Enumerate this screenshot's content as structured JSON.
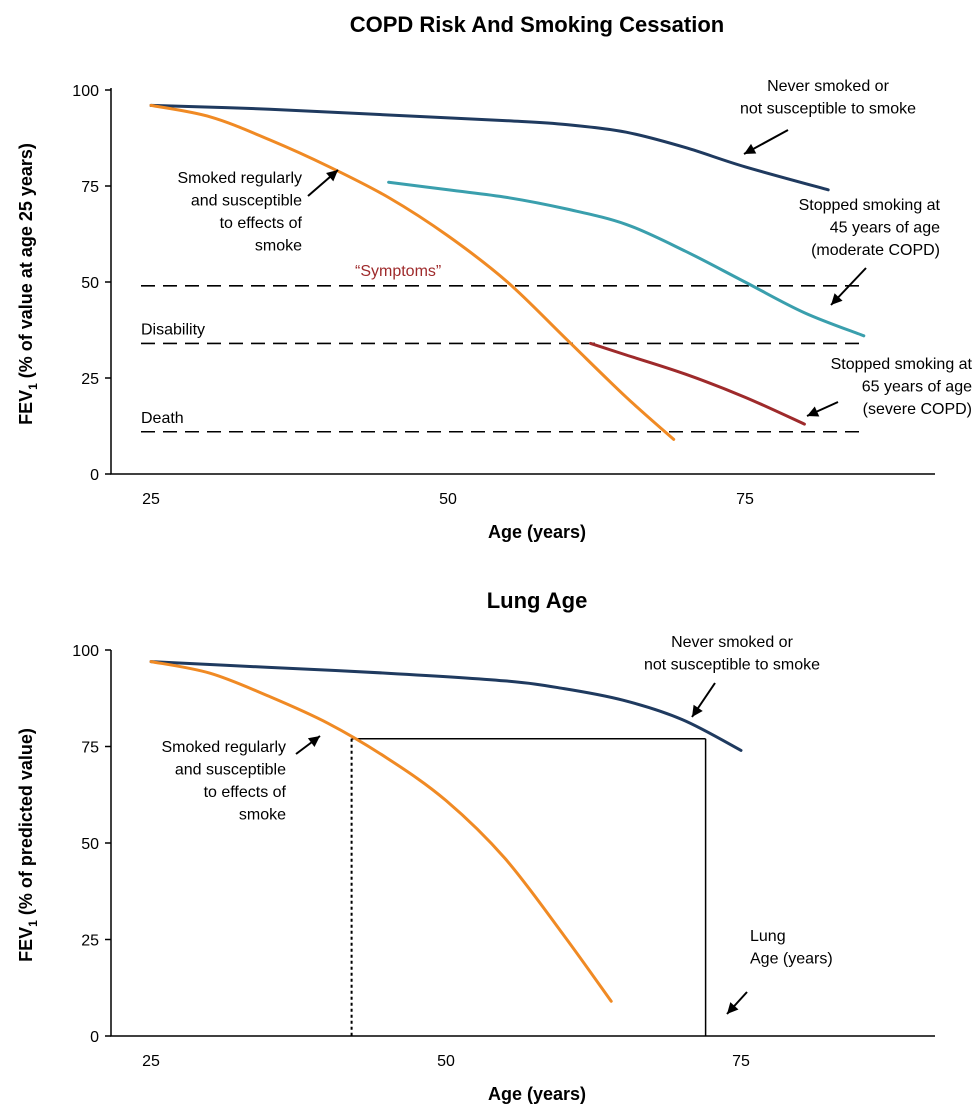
{
  "chart_data": [
    {
      "type": "line",
      "title": "COPD Risk And Smoking Cessation",
      "xlabel": "Age (years)",
      "ylabel": "FEV",
      "ylabel_sub": "1",
      "ylabel_rest": " (% of value at age 25 years)",
      "xlim": [
        21,
        95
      ],
      "ylim": [
        0,
        100
      ],
      "x_ticks": [
        25,
        50,
        75
      ],
      "y_ticks": [
        0,
        25,
        50,
        75,
        100
      ],
      "grid": false,
      "colors": {
        "never": "#1f3a5f",
        "smoked": "#f08a24",
        "stop45": "#3a9fad",
        "stop65": "#9e2a2b"
      },
      "series": [
        {
          "key": "never",
          "x": [
            25,
            35,
            45,
            55,
            60,
            65,
            70,
            75,
            82
          ],
          "y": [
            96,
            95,
            93.5,
            92,
            91,
            89,
            85,
            80,
            74
          ]
        },
        {
          "key": "smoked",
          "x": [
            25,
            30,
            35,
            40,
            45,
            50,
            55,
            60,
            65,
            69
          ],
          "y": [
            96,
            93,
            87,
            80,
            72,
            62,
            50,
            35,
            20,
            9
          ]
        },
        {
          "key": "stop45",
          "x": [
            45,
            50,
            55,
            60,
            65,
            70,
            75,
            80,
            85
          ],
          "y": [
            76,
            74,
            72,
            69,
            65,
            58,
            50,
            42,
            36
          ]
        },
        {
          "key": "stop65",
          "x": [
            62,
            65,
            70,
            75,
            80
          ],
          "y": [
            34,
            31,
            26,
            20,
            13
          ]
        }
      ],
      "reference_lines": [
        {
          "y": 49,
          "label": "“Symptoms”"
        },
        {
          "y": 34,
          "label": "Disability"
        },
        {
          "y": 11,
          "label": "Death"
        }
      ],
      "annotations": [
        {
          "lines": [
            "Never smoked or",
            "not susceptible to smoke"
          ]
        },
        {
          "lines": [
            "Smoked regularly",
            "and susceptible",
            "to effects of",
            "smoke"
          ]
        },
        {
          "lines": [
            "Stopped smoking at",
            "45 years of age",
            "(moderate COPD)"
          ]
        },
        {
          "lines": [
            "Stopped smoking at",
            "65 years of age",
            "(severe COPD)"
          ]
        }
      ]
    },
    {
      "type": "line",
      "title": "Lung Age",
      "xlabel": "Age (years)",
      "ylabel": "FEV",
      "ylabel_sub": "1",
      "ylabel_rest": " (% of predicted value)",
      "xlim": [
        21,
        95
      ],
      "ylim": [
        0,
        100
      ],
      "x_ticks": [
        25,
        50,
        75
      ],
      "y_ticks": [
        0,
        25,
        50,
        75,
        100
      ],
      "grid": false,
      "colors": {
        "never": "#1f3a5f",
        "smoked": "#f08a24"
      },
      "series": [
        {
          "key": "never",
          "x": [
            25,
            35,
            45,
            55,
            60,
            65,
            70,
            75
          ],
          "y": [
            97,
            95.5,
            94,
            92,
            90,
            87,
            82,
            74
          ]
        },
        {
          "key": "smoked",
          "x": [
            25,
            30,
            35,
            40,
            45,
            50,
            55,
            60,
            64
          ],
          "y": [
            97,
            94,
            88,
            81,
            72,
            61,
            46,
            26,
            9
          ]
        }
      ],
      "lung_age": {
        "age_actual": 42,
        "fev": 77,
        "lung_age": 72
      },
      "annotations": [
        {
          "lines": [
            "Never smoked or",
            "not susceptible to smoke"
          ]
        },
        {
          "lines": [
            "Smoked regularly",
            "and susceptible",
            "to effects of",
            "smoke"
          ]
        },
        {
          "lines": [
            "Lung",
            "Age (years)"
          ]
        }
      ]
    }
  ]
}
